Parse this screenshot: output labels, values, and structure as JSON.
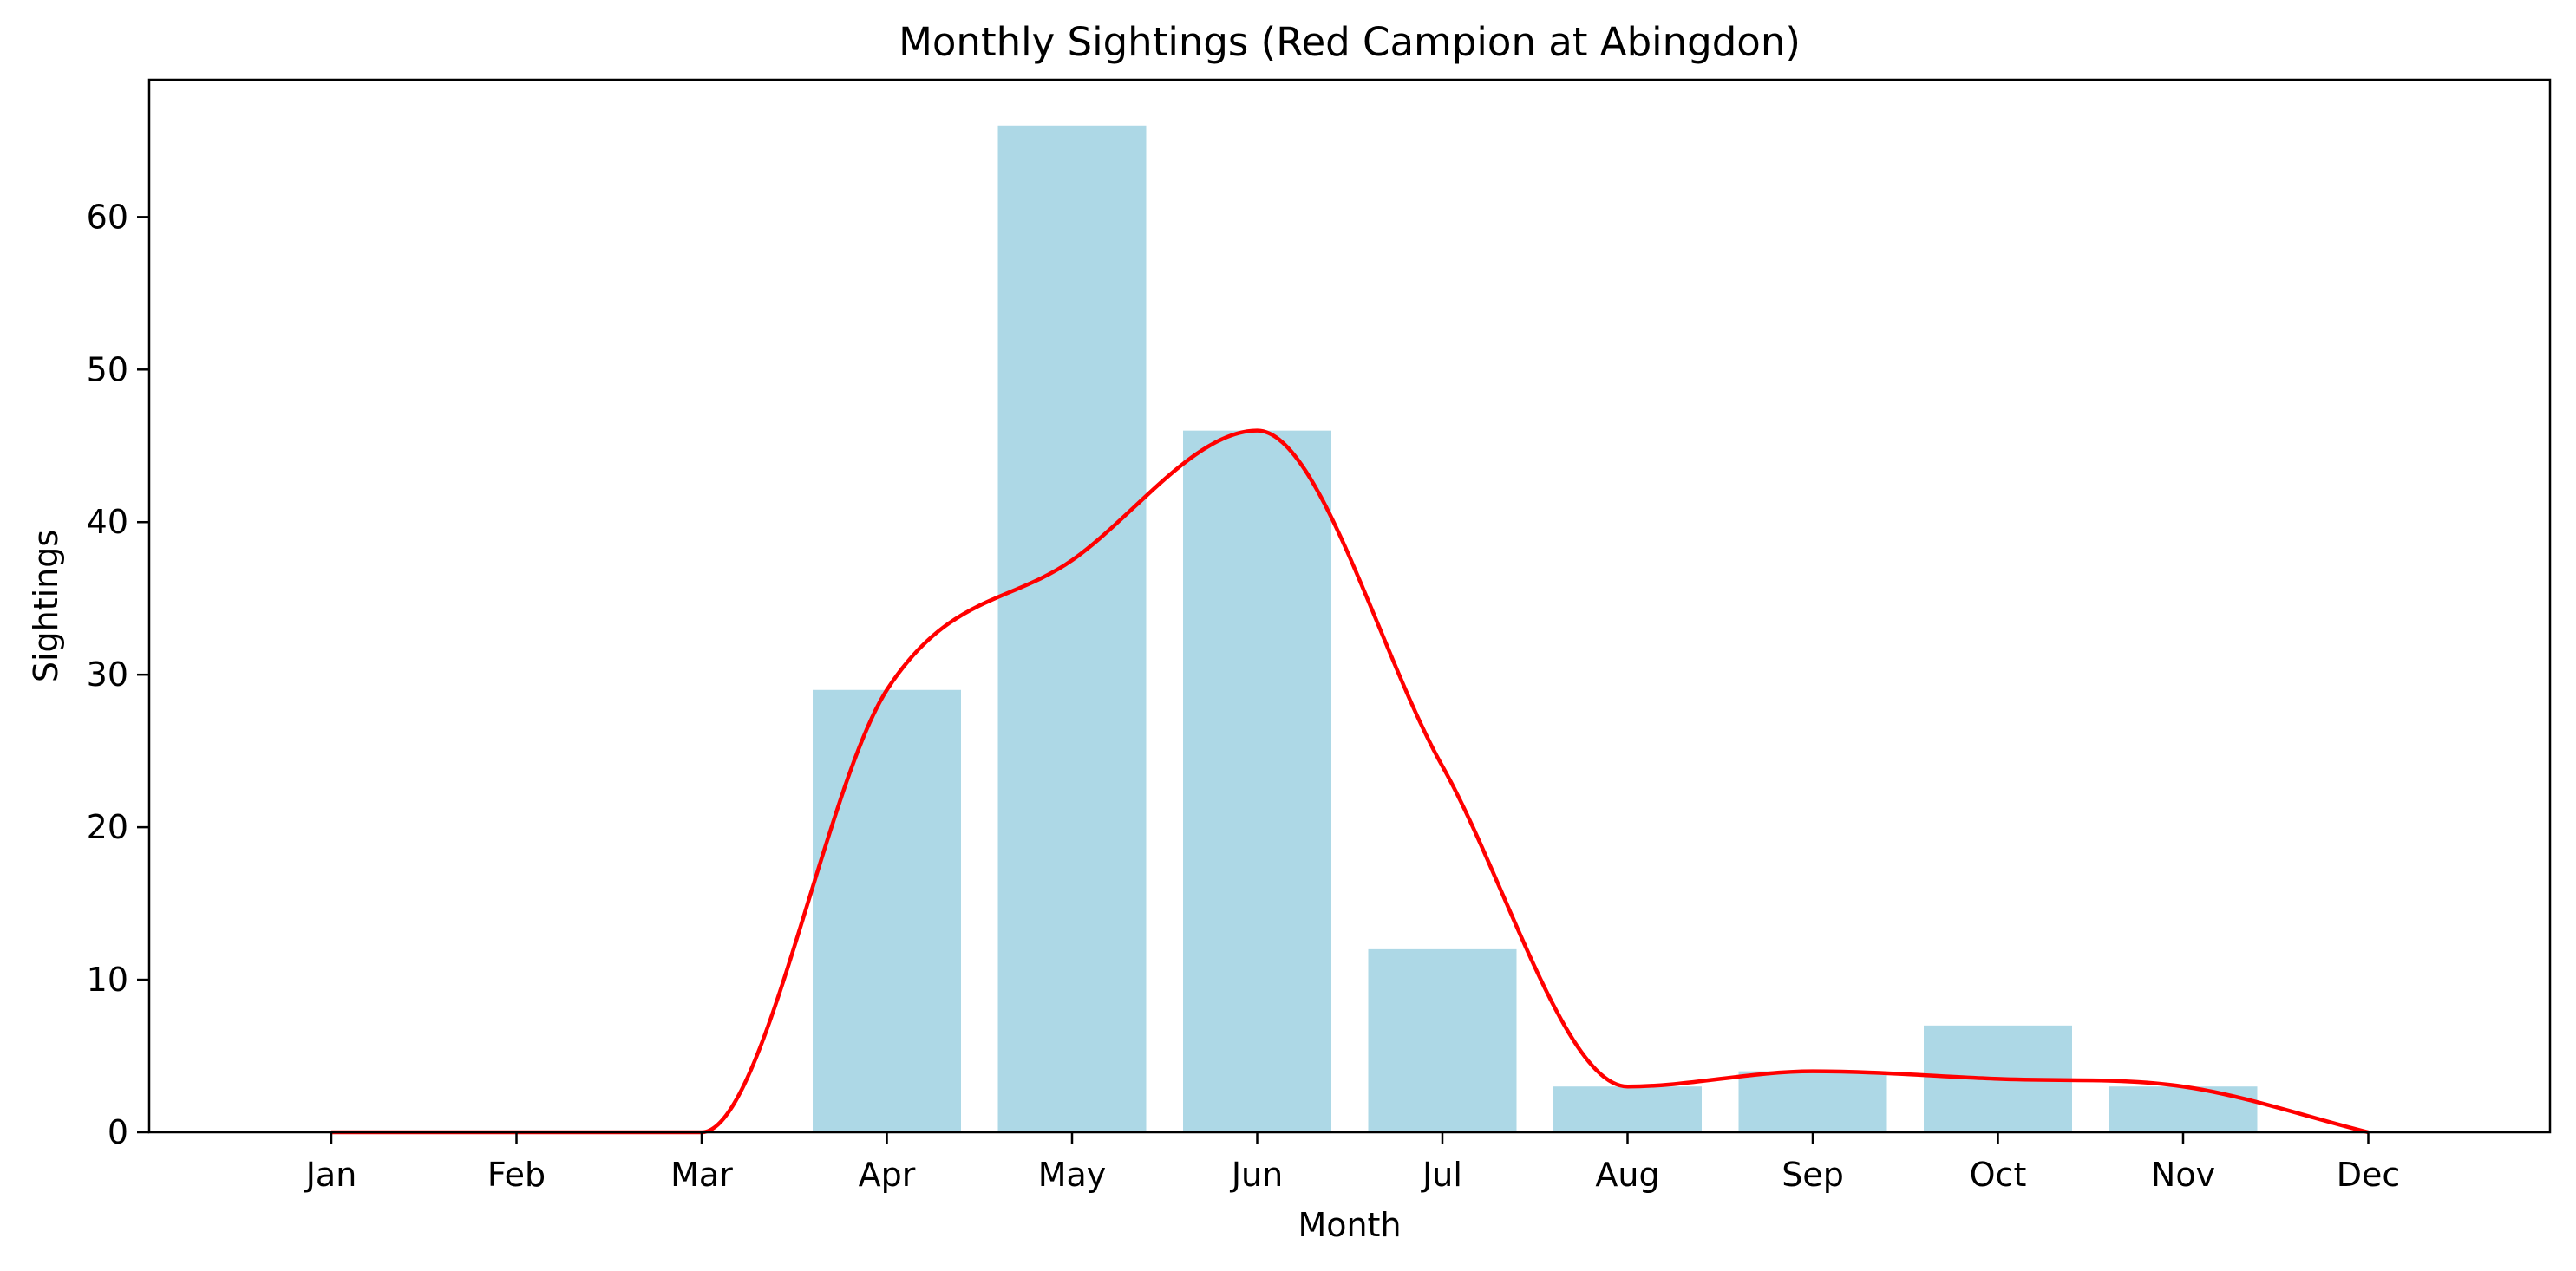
{
  "chart_data": {
    "type": "bar",
    "title": "Monthly Sightings (Red Campion at Abingdon)",
    "xlabel": "Month",
    "ylabel": "Sightings",
    "categories": [
      "Jan",
      "Feb",
      "Mar",
      "Apr",
      "May",
      "Jun",
      "Jul",
      "Aug",
      "Sep",
      "Oct",
      "Nov",
      "Dec"
    ],
    "values": [
      0,
      0,
      0,
      29,
      66,
      46,
      12,
      3,
      4,
      7,
      3,
      0
    ],
    "smoothed_curve": {
      "type": "line",
      "color": "#ff0000",
      "values": [
        0,
        0,
        0,
        29,
        37.5,
        46,
        24,
        3,
        4,
        3.5,
        3,
        0
      ]
    },
    "yticks": [
      0,
      10,
      20,
      30,
      40,
      50,
      60
    ],
    "ylim": [
      0,
      69
    ],
    "grid": false,
    "bar_color": "#add8e6"
  }
}
